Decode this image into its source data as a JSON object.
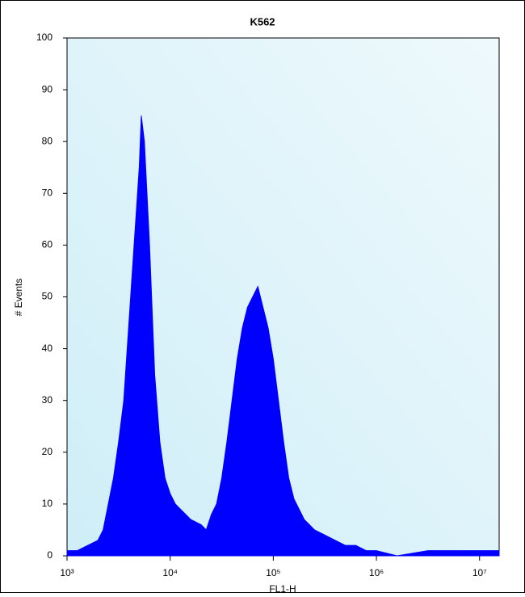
{
  "chart_data": {
    "type": "area",
    "title": "K562",
    "x_label": "FL1-H",
    "y_label": "# Events",
    "log_x": true,
    "color": "#0000ff",
    "x": [
      1000,
      1122,
      1259,
      1585,
      1995,
      2239,
      2512,
      2818,
      3162,
      3548,
      3981,
      4467,
      5012,
      5248,
      5623,
      6310,
      7079,
      7943,
      8913,
      10000,
      11220,
      12589,
      14125,
      15849,
      19953,
      22387,
      25119,
      28184,
      31623,
      35481,
      39811,
      44668,
      50119,
      56234,
      63096,
      70795,
      79433,
      89125,
      100000,
      112202,
      125893,
      141254,
      158489,
      199526,
      251189,
      316228,
      398107,
      501187,
      630957,
      794328,
      1000000,
      1584893,
      3162278,
      6309573,
      10000000,
      15488166
    ],
    "values": [
      1,
      1,
      1,
      2,
      3,
      5,
      10,
      15,
      22,
      30,
      45,
      60,
      75,
      85,
      80,
      60,
      35,
      22,
      15,
      12,
      10,
      9,
      8,
      7,
      6,
      5,
      8,
      10,
      15,
      22,
      30,
      38,
      44,
      48,
      50,
      52,
      48,
      44,
      38,
      30,
      22,
      15,
      11,
      7,
      5,
      4,
      3,
      2,
      2,
      1,
      1,
      0,
      1,
      1,
      1,
      1
    ],
    "xlim": [
      1000,
      15488166
    ],
    "ylim": [
      0,
      100
    ],
    "xticks": [
      {
        "value": 1000,
        "label": "10³"
      },
      {
        "value": 10000,
        "label": "10⁴"
      },
      {
        "value": 100000,
        "label": "10⁵"
      },
      {
        "value": 1000000,
        "label": "10⁶"
      },
      {
        "value": 10000000,
        "label": "10⁷"
      }
    ],
    "yticks": [
      0,
      10,
      20,
      30,
      40,
      50,
      60,
      70,
      80,
      90,
      100
    ]
  }
}
